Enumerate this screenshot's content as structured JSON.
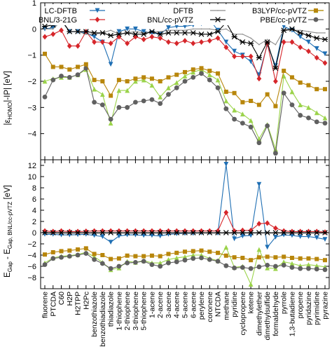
{
  "chart_data": [
    {
      "type": "line",
      "ylabel": "|ε_HOMO|-IP| [eV]",
      "ylim": [
        -5,
        1
      ],
      "yticks": [
        1,
        0,
        -1,
        -2,
        -3,
        -4
      ],
      "grid": false,
      "legend_position": "top",
      "categories": [
        "fluorene",
        "PTCDA",
        "C60",
        "H2P",
        "H2TPP",
        "H2Pc",
        "benzothiazole",
        "benzothiadiazole",
        "thiadiazole",
        "1-thiophene",
        "2-thiophene",
        "3-thiophene",
        "5-thiophene",
        "1-acene",
        "2-acene",
        "3-acene",
        "4-acene",
        "5-acene",
        "6-acene",
        "perylene",
        "coronene",
        "NTCDA",
        "methane",
        "pyridine",
        "cyclopropene",
        "ketene",
        "dimethylether",
        "dimethylsulfide",
        "formaldehyde",
        "pyrrole",
        "1,3-butadiene",
        "propene",
        "pyridazine",
        "pyrimidine",
        "pyrazine"
      ],
      "series": [
        {
          "name": "LC-DFTB",
          "color": "#1f6fb4",
          "marker": "triangle-down",
          "values": [
            0.0,
            0.05,
            0.35,
            -0.1,
            -0.1,
            -0.15,
            -0.3,
            -0.5,
            -1.35,
            -0.1,
            0.0,
            0.0,
            -0.1,
            -0.15,
            -0.2,
            0.05,
            0.1,
            0.1,
            0.15,
            0.2,
            0.35,
            -0.05,
            -0.5,
            -0.85,
            -1.0,
            -1.25,
            -1.75,
            -0.6,
            -1.4,
            0.1,
            -0.05,
            -0.3,
            -0.5,
            -0.75,
            -0.95
          ]
        },
        {
          "name": "BNL/3-21G",
          "color": "#d6262b",
          "marker": "diamond",
          "values": [
            -0.3,
            -0.2,
            -0.05,
            -0.65,
            -0.65,
            -0.1,
            -0.5,
            -0.5,
            -0.55,
            -0.3,
            -0.55,
            -0.3,
            -0.4,
            -0.3,
            -0.35,
            -0.5,
            -0.55,
            -0.45,
            -0.55,
            -0.5,
            -0.45,
            -0.35,
            -0.7,
            -1.05,
            -1.05,
            -1.05,
            -1.9,
            -0.55,
            -2.0,
            -0.5,
            -0.5,
            -0.7,
            -0.85,
            -1.1,
            -1.3
          ]
        },
        {
          "name": "DFTB",
          "color": "#8c8c8c",
          "marker": "dot",
          "values": [
            0.0,
            0.0,
            0.3,
            -0.1,
            -0.1,
            -0.2,
            -0.2,
            -0.15,
            -0.05,
            -0.2,
            -0.15,
            -0.1,
            -0.15,
            -0.1,
            -0.1,
            -0.05,
            -0.05,
            -0.05,
            0.0,
            0.0,
            0.0,
            -0.05,
            0.0,
            -0.2,
            -0.2,
            -0.35,
            -0.6,
            -0.4,
            -0.6,
            -0.05,
            -0.05,
            -0.05,
            -0.1,
            -0.15,
            -0.15
          ]
        },
        {
          "name": "BNL/cc-pVTZ",
          "color": "#000000",
          "marker": "star",
          "values": [
            0.1,
            0.15,
            0.35,
            -0.1,
            -0.1,
            -0.1,
            -0.15,
            -0.15,
            -0.25,
            -0.2,
            -0.15,
            -0.2,
            -0.2,
            -0.1,
            -0.2,
            -0.15,
            -0.15,
            -0.15,
            -0.15,
            -0.2,
            -0.2,
            -0.1,
            0.25,
            -0.3,
            -0.5,
            -0.55,
            -1.1,
            -0.5,
            -1.5,
            -0.05,
            0.0,
            -0.15,
            -0.25,
            -0.35,
            -0.4
          ]
        },
        {
          "name": "B3LYP/cc-pVTZ",
          "color": "#9bd34a",
          "marker": "triangle-up",
          "values": [
            -2.0,
            -1.9,
            -1.85,
            -1.85,
            -1.75,
            -1.55,
            -2.3,
            -2.5,
            -3.6,
            -2.35,
            -2.35,
            -2.0,
            -1.95,
            -2.15,
            -2.6,
            -2.25,
            -2.05,
            -1.8,
            -1.65,
            -1.55,
            -1.75,
            -1.95,
            -2.75,
            -3.1,
            -3.25,
            -3.5,
            -4.2,
            -3.65,
            -4.6,
            -1.8,
            -2.4,
            -2.9,
            -3.0,
            -3.2,
            -3.4
          ]
        },
        {
          "name": "PBE/cc-pVTZ",
          "color": "#606060",
          "marker": "circle",
          "values": [
            -2.6,
            -1.95,
            -1.8,
            -1.85,
            -1.75,
            -1.5,
            -2.8,
            -2.9,
            -3.45,
            -3.0,
            -3.0,
            -2.8,
            -2.75,
            -2.7,
            -2.85,
            -2.5,
            -2.25,
            -2.0,
            -1.85,
            -1.7,
            -1.95,
            -2.25,
            -3.05,
            -3.45,
            -3.6,
            -3.75,
            -4.35,
            -3.7,
            -4.75,
            -2.45,
            -2.9,
            -3.3,
            -3.4,
            -3.55,
            -3.6
          ]
        },
        {
          "name": "",
          "color": "#b8860b",
          "marker": "square",
          "values": [
            -0.95,
            -1.45,
            -1.45,
            -1.55,
            -1.45,
            -1.35,
            -1.95,
            -2.0,
            -2.55,
            -1.95,
            -2.0,
            -1.9,
            -1.85,
            -1.9,
            -2.0,
            -1.85,
            -1.75,
            -1.65,
            -1.55,
            -1.5,
            -1.6,
            -1.7,
            -2.4,
            -2.45,
            -2.8,
            -2.75,
            -2.9,
            -2.5,
            -2.95,
            -1.6,
            -1.85,
            -2.05,
            -2.15,
            -2.3,
            -2.3
          ]
        }
      ]
    },
    {
      "type": "line",
      "ylabel": "E_Gap - E_Gap, BNL/cc-pVTZ [eV]",
      "ylim": [
        -10,
        13
      ],
      "yticks": [
        12,
        10,
        8,
        6,
        4,
        2,
        0,
        -2,
        -4,
        -6,
        -8
      ],
      "grid": false,
      "series": [
        {
          "name": "LC-DFTB",
          "color": "#1f6fb4",
          "marker": "triangle-down",
          "values": [
            -0.3,
            -0.3,
            -0.4,
            -0.4,
            -0.35,
            -0.3,
            -0.5,
            -0.7,
            -1.7,
            -0.6,
            -0.4,
            -0.4,
            -0.5,
            -0.5,
            -0.6,
            -0.3,
            -0.2,
            -0.15,
            -0.15,
            -0.05,
            0.0,
            -0.1,
            12.2,
            -1.1,
            -0.6,
            -0.5,
            8.6,
            -2.6,
            -0.8,
            -0.4,
            -0.5,
            -0.7,
            -0.7,
            -0.9,
            -1.2
          ]
        },
        {
          "name": "BNL/3-21G",
          "color": "#d6262b",
          "marker": "diamond",
          "values": [
            0.3,
            0.2,
            0.3,
            0.2,
            0.2,
            0.25,
            0.3,
            0.3,
            0.3,
            0.3,
            0.3,
            0.3,
            0.3,
            0.3,
            0.3,
            0.3,
            0.3,
            0.3,
            0.3,
            0.3,
            0.3,
            0.3,
            3.6,
            0.3,
            0.4,
            0.4,
            1.6,
            1.7,
            0.8,
            0.3,
            0.2,
            0.2,
            0.2,
            0.2,
            0.1
          ]
        },
        {
          "name": "DFTB",
          "color": "#8c8c8c",
          "marker": "dot",
          "values": [
            -0.1,
            -0.1,
            -0.1,
            -0.1,
            -0.1,
            -0.1,
            -0.1,
            -0.1,
            -0.1,
            -0.1,
            -0.1,
            -0.1,
            -0.1,
            -0.1,
            -0.1,
            -0.1,
            -0.1,
            -0.1,
            -0.1,
            -0.1,
            -0.1,
            -0.1,
            -0.1,
            -0.1,
            -0.1,
            -0.1,
            -0.1,
            -0.1,
            -0.1,
            -0.1,
            -0.1,
            -0.1,
            -0.1,
            -0.1,
            -0.1
          ]
        },
        {
          "name": "BNL/cc-pVTZ",
          "color": "#000000",
          "marker": "star",
          "values": [
            0,
            0,
            0,
            0,
            0,
            0,
            0,
            0,
            0,
            0,
            0,
            0,
            0,
            0,
            0,
            0,
            0,
            0,
            0,
            0,
            0,
            0,
            0,
            0,
            0,
            0,
            0,
            0,
            0,
            0,
            0,
            0,
            0,
            0,
            0
          ]
        },
        {
          "name": "B3LYP/cc-pVTZ",
          "color": "#9bd34a",
          "marker": "triangle-up",
          "values": [
            -5.4,
            -4.5,
            -4.2,
            -4.1,
            -3.9,
            -3.5,
            -4.3,
            -5.3,
            -6.6,
            -6.3,
            -5.1,
            -5.3,
            -5.0,
            -5.4,
            -5.4,
            -4.8,
            -4.5,
            -4.3,
            -4.0,
            -4.0,
            -4.6,
            -5.0,
            -2.6,
            -6.2,
            -6.0,
            -9.2,
            -3.0,
            -6.3,
            -6.4,
            -5.2,
            -5.5,
            -5.9,
            -5.7,
            -5.9,
            -6.1
          ]
        },
        {
          "name": "PBE/cc-pVTZ",
          "color": "#606060",
          "marker": "circle",
          "values": [
            -5.7,
            -4.6,
            -4.4,
            -4.2,
            -4.0,
            -3.7,
            -4.8,
            -5.5,
            -6.4,
            -6.0,
            -5.4,
            -5.3,
            -5.1,
            -5.7,
            -6.0,
            -5.4,
            -5.2,
            -4.9,
            -4.6,
            -4.5,
            -4.8,
            -5.1,
            -5.9,
            -6.3,
            -6.2,
            -6.4,
            -6.1,
            -5.8,
            -6.0,
            -5.8,
            -6.2,
            -6.4,
            -6.4,
            -6.5,
            -6.6
          ]
        },
        {
          "name": "",
          "color": "#b8860b",
          "marker": "square",
          "values": [
            -3.9,
            -3.5,
            -3.3,
            -3.2,
            -3.0,
            -2.8,
            -3.8,
            -4.0,
            -4.7,
            -4.6,
            -4.1,
            -4.2,
            -4.2,
            -4.1,
            -4.2,
            -3.8,
            -3.6,
            -3.4,
            -3.3,
            -3.2,
            -3.4,
            -3.6,
            -4.1,
            -4.4,
            -4.5,
            -4.9,
            -4.4,
            -4.3,
            -4.4,
            -4.3,
            -4.5,
            -4.6,
            -4.6,
            -4.7,
            -4.9
          ]
        }
      ]
    }
  ],
  "legend": {
    "rows": [
      [
        {
          "label": "LC-DFTB",
          "series": 0
        },
        {
          "label": "DFTB",
          "series": 2
        },
        {
          "label": "B3LYP/cc-pVTZ",
          "series": 4
        }
      ],
      [
        {
          "label": "BNL/3-21G",
          "series": 1
        },
        {
          "label": "BNL/cc-pVTZ",
          "series": 3
        },
        {
          "label": "PBE/cc-pVTZ",
          "series": 5
        }
      ]
    ]
  }
}
